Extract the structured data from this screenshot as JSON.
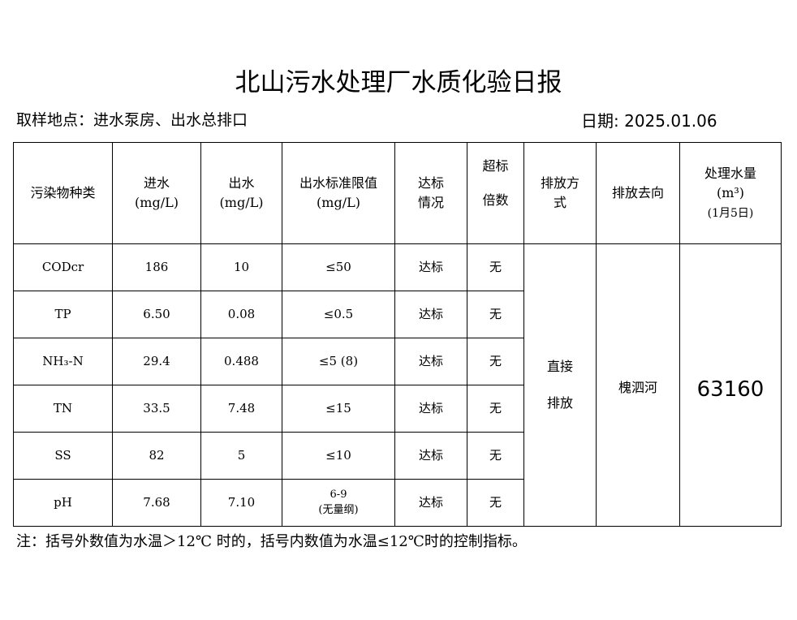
{
  "title": "北山污水处理厂水质化验日报",
  "location": "取样地点：进水泵房、出水总排口",
  "date": "日期: 2025.01.06",
  "headers": {
    "pollutant": "污染物种类",
    "inflow": "进水",
    "inflow_unit": "(mg/L)",
    "outflow": "出水",
    "outflow_unit": "(mg/L)",
    "limit": "出水标准限值",
    "limit_unit": "(mg/L)",
    "status1": "达标",
    "status2": "情况",
    "exceed1": "超标",
    "exceed2": "倍数",
    "method1": "排放方",
    "method2": "式",
    "destination": "排放去向",
    "volume1": "处理水量",
    "volume2": "(m³)",
    "volume3": "(1月5日)"
  },
  "rows": [
    {
      "name": "CODcr",
      "in": "186",
      "out": "10",
      "limit": "≤50",
      "status": "达标",
      "exceed": "无"
    },
    {
      "name": "TP",
      "in": "6.50",
      "out": "0.08",
      "limit": "≤0.5",
      "status": "达标",
      "exceed": "无"
    },
    {
      "name": "NH₃-N",
      "in": "29.4",
      "out": "0.488",
      "limit": "≤5 (8)",
      "status": "达标",
      "exceed": "无"
    },
    {
      "name": "TN",
      "in": "33.5",
      "out": "7.48",
      "limit": "≤15",
      "status": "达标",
      "exceed": "无"
    },
    {
      "name": "SS",
      "in": "82",
      "out": "5",
      "limit": "≤10",
      "status": "达标",
      "exceed": "无"
    },
    {
      "name": "pH",
      "in": "7.68",
      "out": "7.10",
      "limit": "6-9",
      "limit2": "(无量纲)",
      "status": "达标",
      "exceed": "无"
    }
  ],
  "method1": "直接",
  "method2": "排放",
  "destination": "槐泗河",
  "volume": "63160",
  "note": "注：括号外数值为水温＞12℃ 时的，括号内数值为水温≤12℃时的控制指标。"
}
